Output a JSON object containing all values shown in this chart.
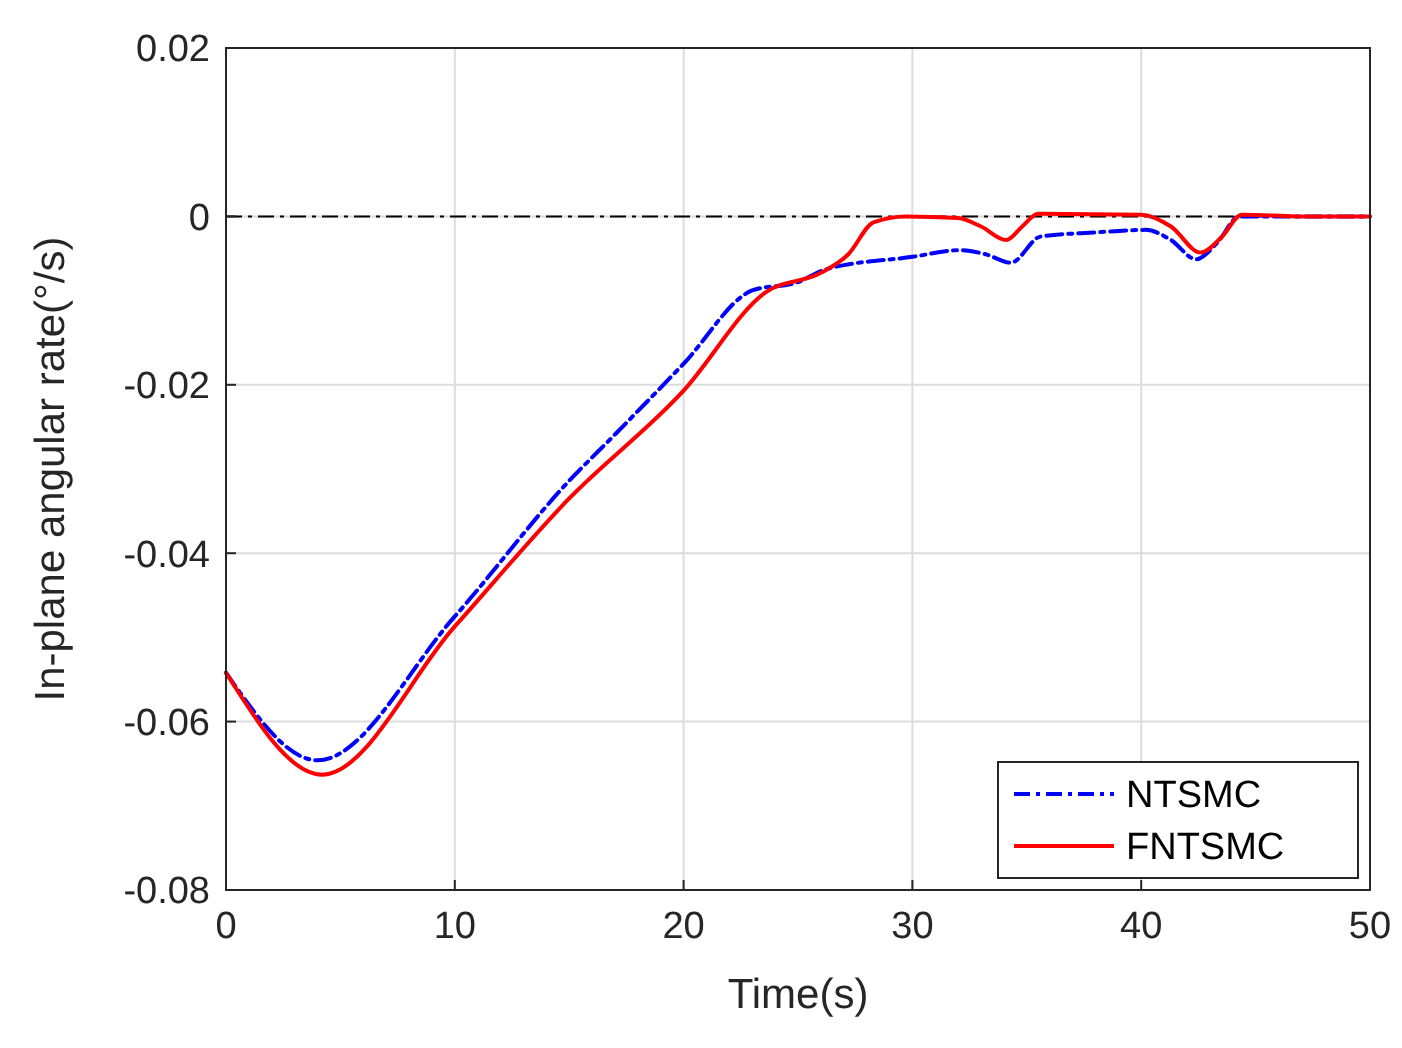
{
  "chart_data": {
    "type": "line",
    "xlabel": "Time(s)",
    "ylabel": "In-plane angular rate(°/s)",
    "xlim": [
      0,
      50
    ],
    "ylim": [
      -0.08,
      0.02
    ],
    "xticks": [
      0,
      10,
      20,
      30,
      40,
      50
    ],
    "yticks": [
      -0.08,
      -0.06,
      -0.04,
      -0.02,
      0,
      0.02
    ],
    "grid": true,
    "legend": "bottom right",
    "ref_lines": [
      {
        "axis": "y",
        "value": 0,
        "color": "#000000",
        "line_style": "dashed"
      }
    ],
    "series": [
      {
        "name": "NTSMC",
        "color": "#0000ff",
        "line_style": "dashed",
        "x": [
          0,
          4,
          10,
          15,
          17,
          20,
          23,
          25,
          26.2,
          30,
          32.1,
          33.2,
          34.3,
          35.6,
          38,
          40.2,
          41.3,
          42.4,
          43.3,
          44.3,
          47,
          50
        ],
        "values": [
          -0.0542,
          -0.0646,
          -0.0475,
          -0.0314,
          -0.0259,
          -0.0175,
          -0.0088,
          -0.0078,
          -0.0063,
          -0.0048,
          -0.004,
          -0.0045,
          -0.0055,
          -0.0024,
          -0.0019,
          -0.0016,
          -0.0028,
          -0.0051,
          -0.0032,
          0,
          0,
          0
        ]
      },
      {
        "name": "FNTSMC",
        "color": "#ff0000",
        "line_style": "solid",
        "x": [
          0,
          4.2,
          10,
          15,
          20,
          23.6,
          26,
          27.2,
          28.3,
          29.7,
          32,
          33,
          34.1,
          34.8,
          35.5,
          40,
          41.3,
          42.6,
          43.5,
          44.4,
          47,
          50
        ],
        "values": [
          -0.0542,
          -0.0663,
          -0.0487,
          -0.0335,
          -0.0207,
          -0.009,
          -0.0067,
          -0.0045,
          -0.0007,
          0,
          -0.0002,
          -0.0012,
          -0.0028,
          -0.0012,
          0.0003,
          0.0002,
          -0.0012,
          -0.0043,
          -0.0025,
          0.0002,
          0,
          0
        ]
      }
    ]
  }
}
